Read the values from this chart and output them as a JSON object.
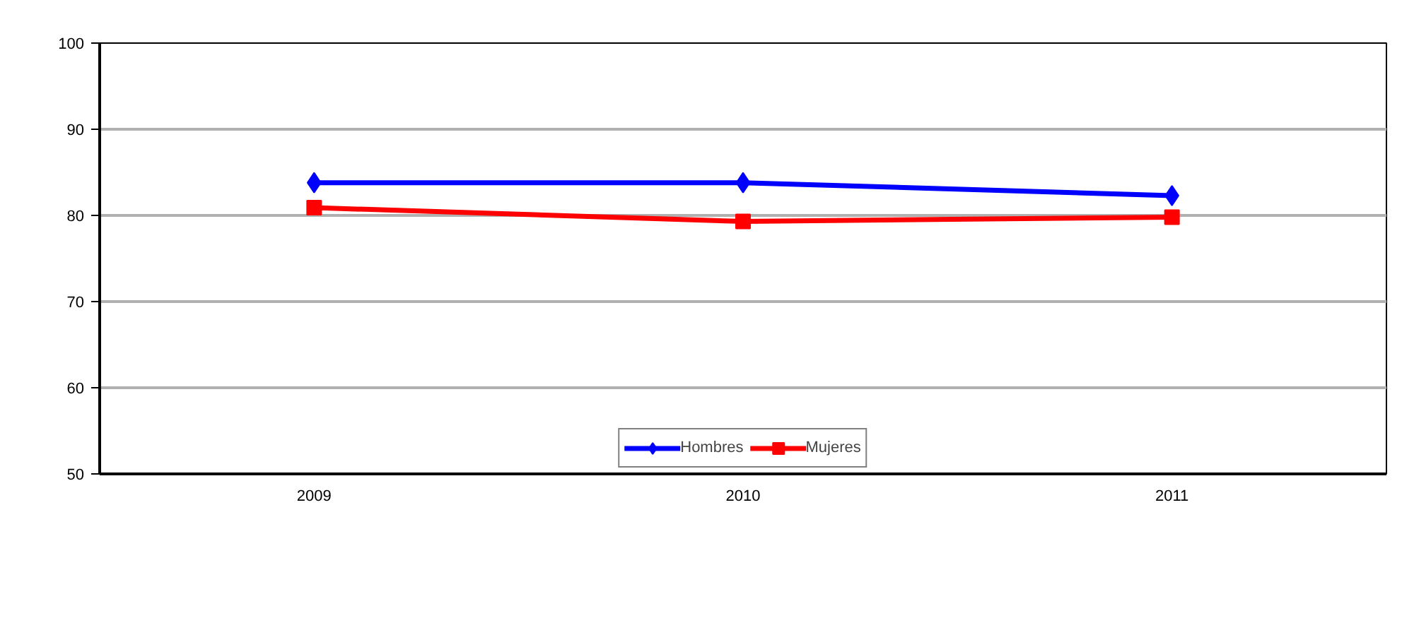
{
  "chart_data": {
    "type": "line",
    "categories": [
      "2009",
      "2010",
      "2011"
    ],
    "series": [
      {
        "name": "Hombres",
        "color": "#0000ff",
        "marker": "diamond",
        "values": [
          83.8,
          83.8,
          82.3
        ]
      },
      {
        "name": "Mujeres",
        "color": "#ff0000",
        "marker": "square",
        "values": [
          80.9,
          79.3,
          79.8
        ]
      }
    ],
    "ylim": [
      50,
      100
    ],
    "yticks": [
      50,
      60,
      70,
      80,
      90,
      100
    ],
    "grid": "y",
    "legend": "bottom",
    "line_style": "solid"
  }
}
